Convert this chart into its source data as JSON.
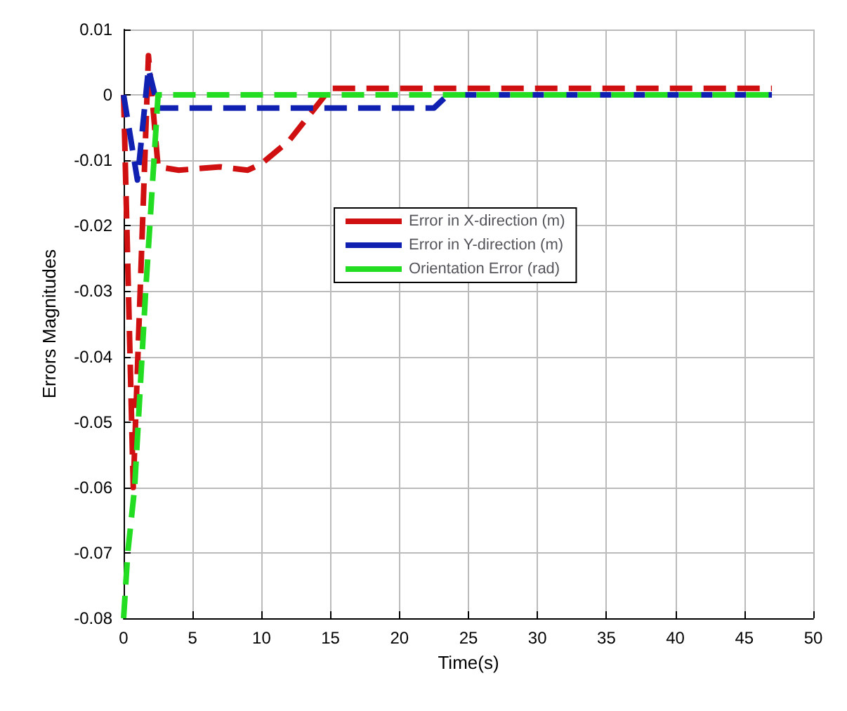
{
  "chart_data": {
    "type": "line",
    "xlabel": "Time(s)",
    "ylabel": "Errors Magnitudes",
    "xlim": [
      0,
      50
    ],
    "xticks": [
      0,
      5,
      10,
      15,
      20,
      25,
      30,
      35,
      40,
      45,
      50
    ],
    "ylim": [
      -0.08,
      0.01
    ],
    "yticks": [
      -0.08,
      -0.07,
      -0.06,
      -0.05,
      -0.04,
      -0.03,
      -0.02,
      -0.01,
      0,
      0.01
    ],
    "grid": true,
    "legend": "center",
    "line_style": "dashed",
    "marker": "none",
    "series": [
      {
        "name": "Error in X-direction (m)",
        "color": "#d01010",
        "x": [
          0,
          0.7,
          1.8,
          2.5,
          4,
          7,
          9,
          10,
          12,
          15,
          20,
          30,
          47
        ],
        "values": [
          0,
          -0.06,
          0.006,
          -0.011,
          -0.0115,
          -0.011,
          -0.0115,
          -0.0105,
          -0.007,
          0.001,
          0.001,
          0.001,
          0.001
        ]
      },
      {
        "name": "Error in Y-direction (m)",
        "color": "#1020b0",
        "x": [
          0,
          1,
          1.8,
          2.5,
          10,
          22.5,
          23.5,
          30,
          47
        ],
        "values": [
          0,
          -0.013,
          0.004,
          -0.002,
          -0.002,
          -0.002,
          0,
          0,
          0
        ]
      },
      {
        "name": "Orientation Error (rad)",
        "color": "#22dd22",
        "x": [
          0,
          0.3,
          0.8,
          1.2,
          1.6,
          2.2,
          2.5,
          10,
          30,
          47
        ],
        "values": [
          -0.08,
          -0.07,
          -0.06,
          -0.045,
          -0.03,
          -0.01,
          0,
          0,
          0,
          0
        ]
      }
    ]
  }
}
